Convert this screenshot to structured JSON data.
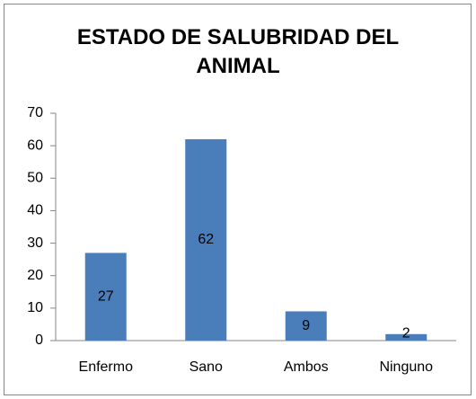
{
  "chart_data": {
    "type": "bar",
    "title": "ESTADO DE SALUBRIDAD DEL ANIMAL",
    "categories": [
      "Enfermo",
      "Sano",
      "Ambos",
      "Ninguno"
    ],
    "values": [
      27,
      62,
      9,
      2
    ],
    "color": "#4a7ebb",
    "ylim": [
      0,
      70
    ],
    "yticks": [
      0,
      10,
      20,
      30,
      40,
      50,
      60,
      70
    ],
    "grid": false
  }
}
